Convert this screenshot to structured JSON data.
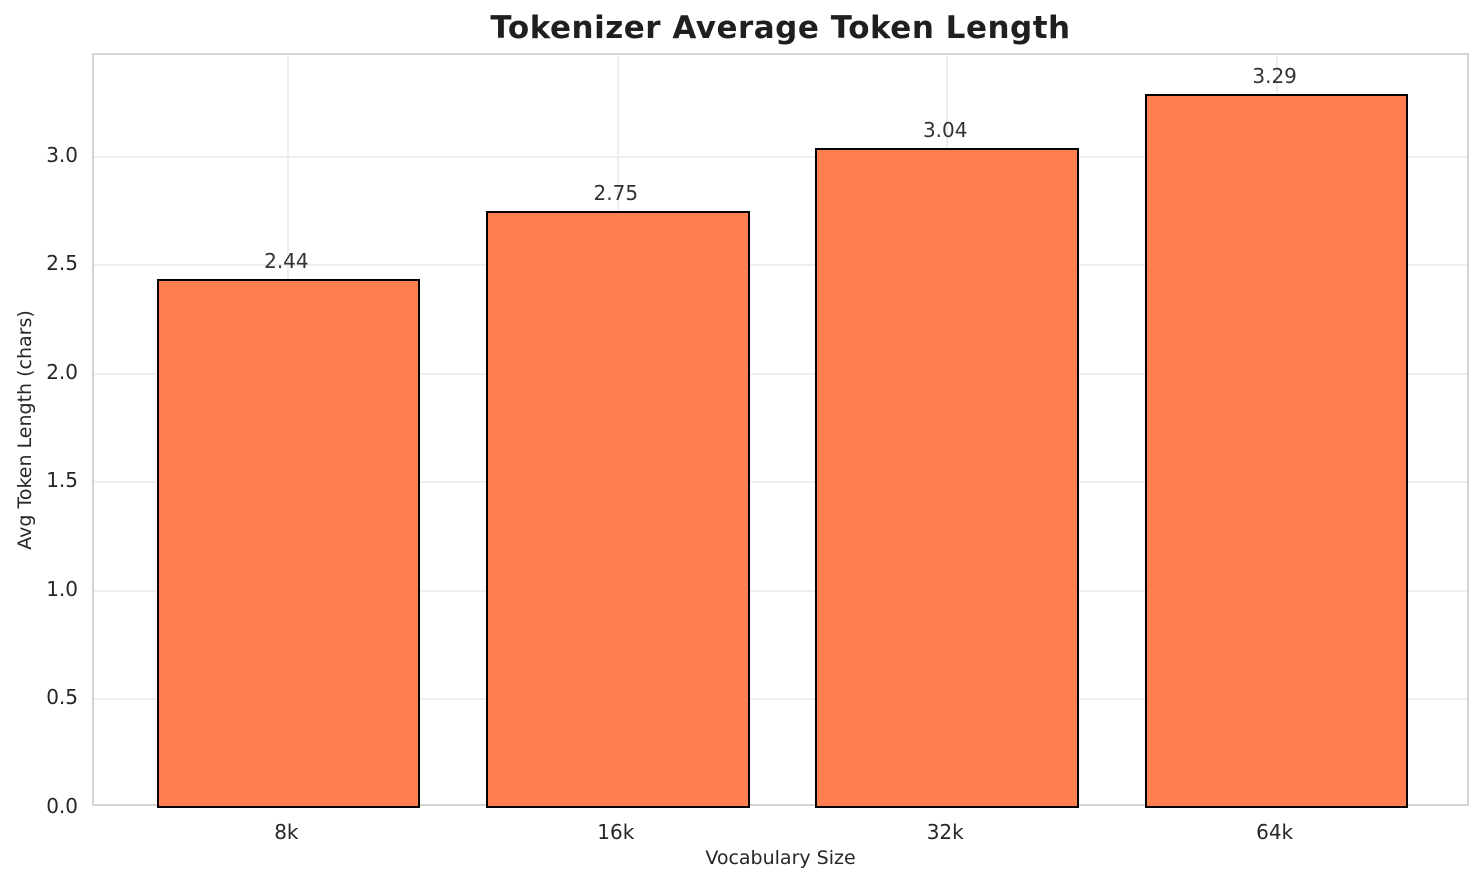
{
  "chart_data": {
    "type": "bar",
    "title": "Tokenizer Average Token Length",
    "xlabel": "Vocabulary Size",
    "ylabel": "Avg Token Length (chars)",
    "categories": [
      "8k",
      "16k",
      "32k",
      "64k"
    ],
    "values": [
      2.44,
      2.75,
      3.04,
      3.29
    ],
    "value_labels": [
      "2.44",
      "2.75",
      "3.04",
      "3.29"
    ],
    "yticks": [
      0.0,
      0.5,
      1.0,
      1.5,
      2.0,
      2.5,
      3.0
    ],
    "ytick_labels": [
      "0.0",
      "0.5",
      "1.0",
      "1.5",
      "2.0",
      "2.5",
      "3.0"
    ],
    "ylim": [
      0,
      3.47
    ],
    "xlim": [
      -0.59,
      3.59
    ],
    "bar_width_units": 0.8,
    "bar_color": "#FF7F50",
    "bar_edge_color": "#000000",
    "grid": true,
    "grid_color": "#eeeeee",
    "legend": "none"
  }
}
